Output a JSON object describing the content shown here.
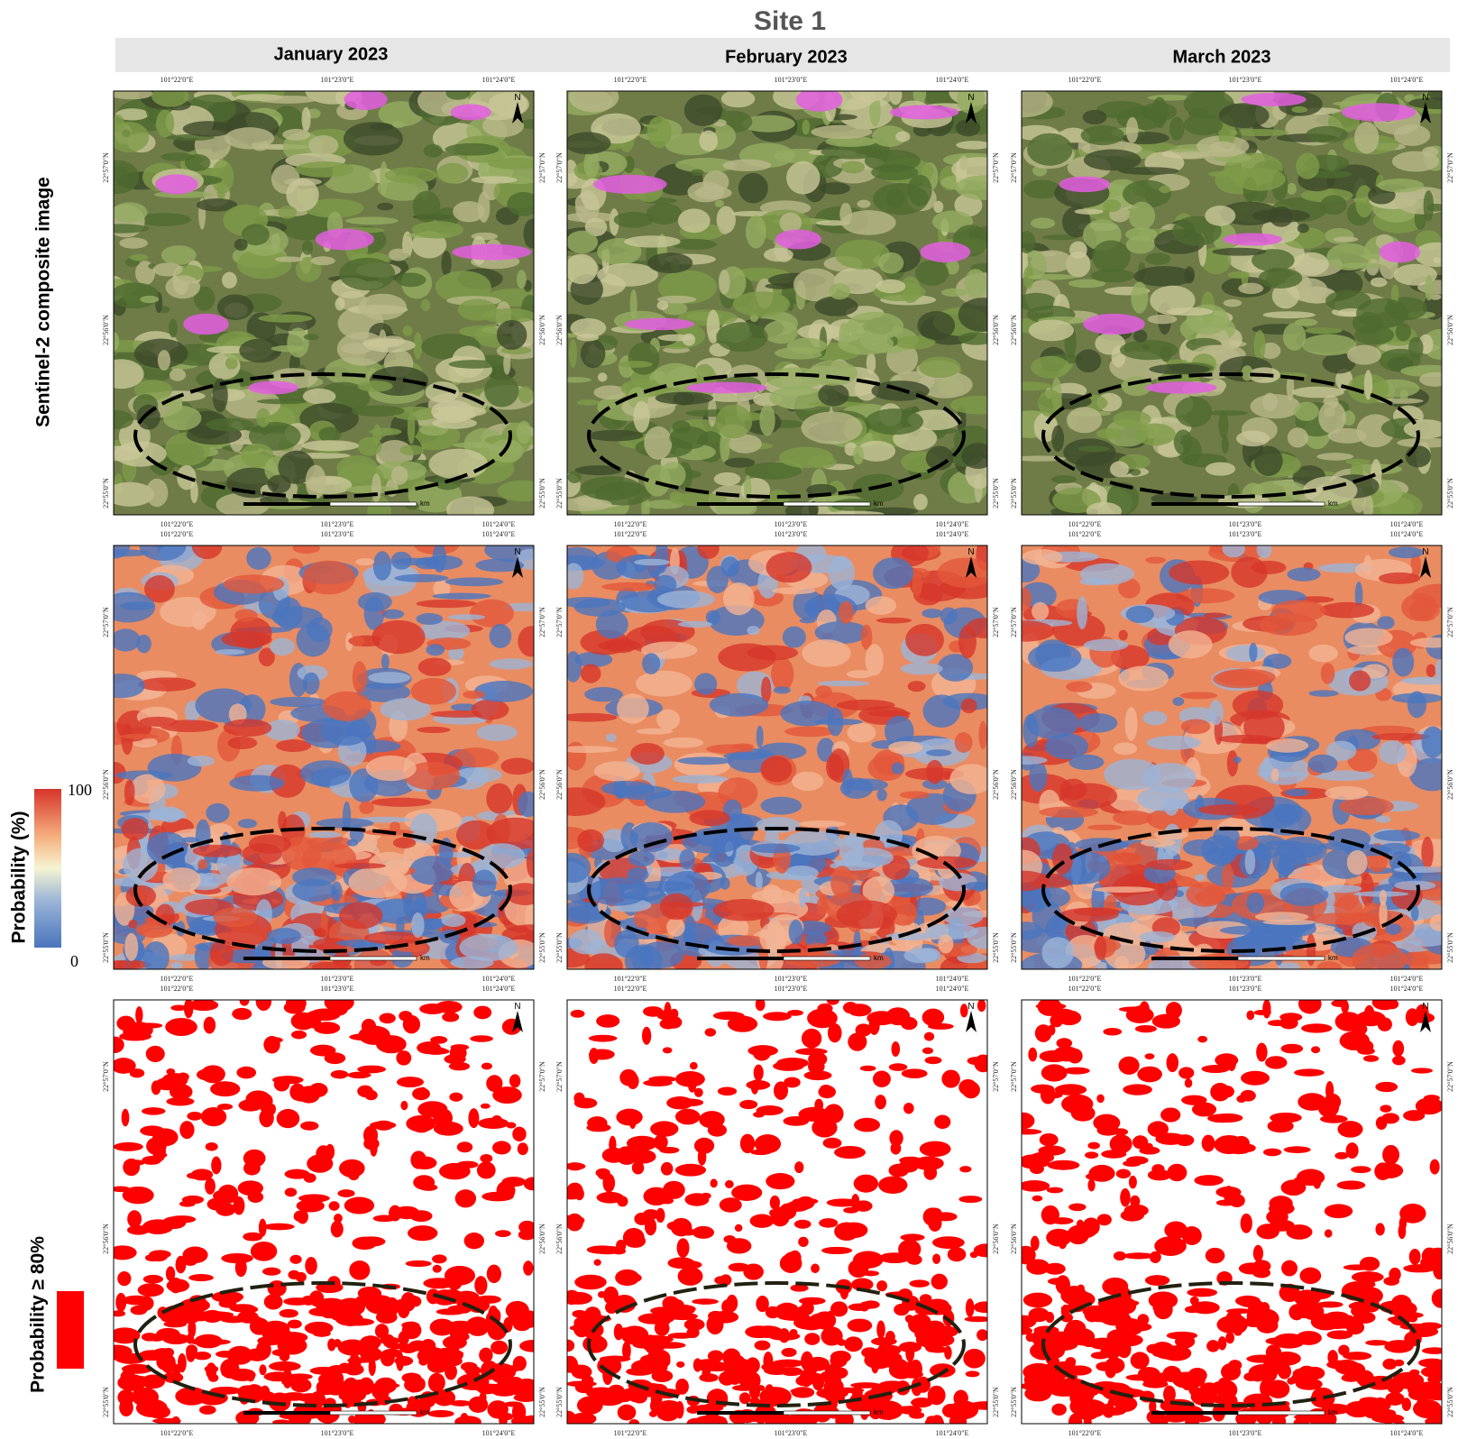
{
  "title": "Site 1",
  "columns": [
    "January  2023",
    "February  2023",
    "March  2023"
  ],
  "rows": [
    "Sentinel-2  composite image",
    "Probability (%)",
    "Probability ≥ 80%"
  ],
  "longitude_labels": [
    "101°22'0\"E",
    "101°23'0\"E",
    "101°24'0\"E"
  ],
  "latitude_labels": [
    "22°57'0\"N",
    "22°56'0\"N",
    "22°55'0\"N"
  ],
  "colorbar": {
    "max": 100,
    "min": 0
  },
  "scale_bar": {
    "unit": "km"
  },
  "north": "N"
}
